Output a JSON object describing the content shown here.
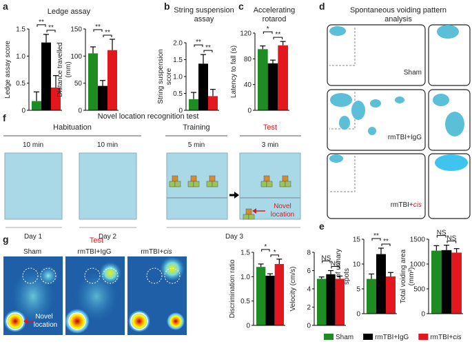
{
  "panel_letters": [
    "a",
    "b",
    "c",
    "d",
    "e",
    "f",
    "g"
  ],
  "headings": {
    "ledge": "Ledge assay",
    "string": [
      "String suspension",
      "assay"
    ],
    "rotarod": [
      "Accelerating",
      "rotarod"
    ],
    "voiding": [
      "Spontaneous voiding pattern",
      "analysis"
    ],
    "novel": "Novel location recognition test"
  },
  "voiding_labels": [
    "Sham",
    "rmTBI+IgG",
    {
      "text": "rmTBI+",
      "italic": "cis"
    }
  ],
  "protocol": {
    "phases": [
      "Habituation",
      "Training",
      "Test"
    ],
    "durations": [
      "10 min",
      "10 min",
      "5 min",
      "3 min"
    ],
    "days": [
      "Day 1",
      "Day 2",
      "Day 3"
    ],
    "novel_location": [
      "Novel",
      "location"
    ]
  },
  "heatmaps": {
    "title": "Test",
    "labels": [
      "Sham",
      "rmTBI+IgG",
      {
        "text": "rmTBI+",
        "italic": "cis"
      }
    ],
    "novel_location": [
      "Novel",
      "location"
    ]
  },
  "legend": [
    {
      "name": "Sham",
      "color": "#1e8c23"
    },
    {
      "name": "rmTBI+IgG",
      "color": "#000000"
    },
    {
      "name": {
        "text": "rmTBI+",
        "italic": "cis"
      },
      "color": "#e3181f"
    }
  ],
  "chart_data": [
    {
      "type": "bar",
      "ylabel": [
        "Ledge assay score"
      ],
      "ylim": [
        0,
        1.5
      ],
      "yticks": [
        0,
        0.5,
        {
          "value": 1,
          "label": "1.0"
        },
        1.5
      ],
      "values": [
        0.17,
        1.25,
        0.42
      ],
      "errors": [
        0.17,
        0.15,
        0.22
      ],
      "significance": [
        "**",
        "**"
      ]
    },
    {
      "type": "bar",
      "ylabel": [
        "Distance travelled",
        "(mm)"
      ],
      "ylim": [
        0,
        150
      ],
      "yticks": [
        0,
        50,
        100,
        150
      ],
      "values": [
        105,
        45,
        111
      ],
      "errors": [
        12,
        10,
        20
      ],
      "significance": [
        "**",
        "**"
      ]
    },
    {
      "type": "bar",
      "ylabel": [
        "String suspension",
        "score"
      ],
      "ylim": [
        0,
        2
      ],
      "yticks": [
        0,
        0.5,
        {
          "value": 1,
          "label": "1.0"
        },
        1.5,
        {
          "value": 2,
          "label": "2.0"
        }
      ],
      "values": [
        0.33,
        1.38,
        0.42
      ],
      "errors": [
        0.2,
        0.27,
        0.2
      ],
      "significance": [
        "**",
        "**"
      ]
    },
    {
      "type": "bar",
      "ylabel": [
        "Latency to fall (s)"
      ],
      "ylim": [
        0,
        120
      ],
      "yticks": [
        0,
        40,
        80,
        120
      ],
      "values": [
        95,
        73,
        101
      ],
      "errors": [
        5,
        5,
        6
      ],
      "significance": [
        "*",
        "**"
      ]
    },
    {
      "type": "bar",
      "ylabel": [
        "Number of urinary",
        "spots"
      ],
      "ylim": [
        0,
        15
      ],
      "yticks": [
        0,
        5,
        10,
        15
      ],
      "values": [
        7,
        12,
        7.5
      ],
      "errors": [
        1,
        1.2,
        0.8
      ],
      "significance": [
        "**",
        "**"
      ]
    },
    {
      "type": "bar",
      "ylabel": [
        "Total voiding area",
        "(mm²)"
      ],
      "ylim": [
        0,
        1500
      ],
      "yticks": [
        0,
        500,
        1000,
        1500
      ],
      "values": [
        1270,
        1280,
        1230
      ],
      "errors": [
        100,
        100,
        80
      ],
      "significance": [
        "NS",
        "NS"
      ]
    },
    {
      "type": "bar",
      "ylabel": [
        "Discrimination ratio"
      ],
      "ylim": [
        0,
        1.5
      ],
      "yticks": [
        0,
        0.5,
        {
          "value": 1,
          "label": "1.0"
        },
        1.5
      ],
      "values": [
        1.2,
        1.02,
        1.26
      ],
      "errors": [
        0.06,
        0.04,
        0.1
      ],
      "significance": [
        "*",
        "*"
      ]
    },
    {
      "type": "bar",
      "ylabel": [
        "Velocity (cm/s)"
      ],
      "ylim": [
        0,
        8
      ],
      "yticks": [
        0,
        2,
        4,
        6,
        8
      ],
      "values": [
        5.1,
        5.6,
        5.1
      ],
      "errors": [
        0.2,
        0.4,
        0.3
      ],
      "significance": [
        "NS",
        "NS"
      ]
    }
  ]
}
